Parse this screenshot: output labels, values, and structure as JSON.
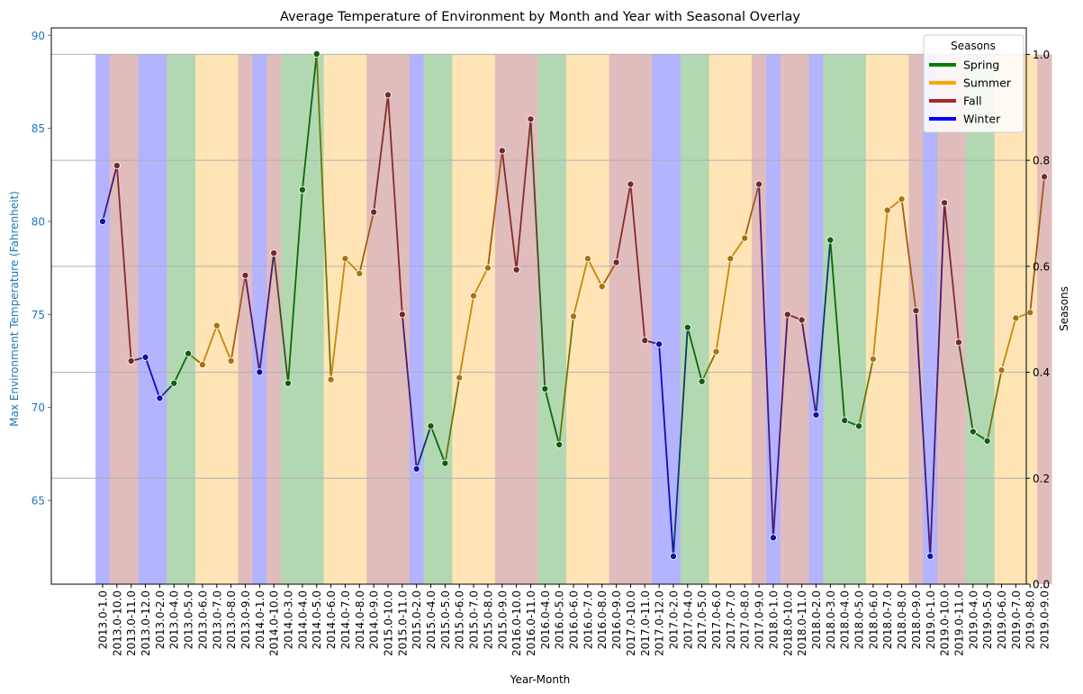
{
  "chart_data": {
    "type": "line",
    "title": "Average Temperature of Environment by Month and Year with Seasonal Overlay",
    "xlabel": "Year-Month",
    "ylabel": "Max Environment Temperature (Fahrenheit)",
    "y2label": "Seasons",
    "ylim": [
      60.5,
      90.4
    ],
    "y_ticks": [
      65,
      70,
      75,
      80,
      85,
      90
    ],
    "y2lim": [
      0.0,
      1.05
    ],
    "y2_ticks": [
      "0.0",
      "0.2",
      "0.4",
      "0.6",
      "0.8",
      "1.0"
    ],
    "grid": "horizontal grid on secondary axis",
    "legend": {
      "title": "Seasons",
      "placement": "top-right",
      "entries": [
        {
          "label": "Spring",
          "color": "#008000"
        },
        {
          "label": "Summer",
          "color": "#ffa500"
        },
        {
          "label": "Fall",
          "color": "#a52a2a"
        },
        {
          "label": "Winter",
          "color": "#0000ff"
        }
      ]
    },
    "season_band_colors": {
      "Spring": "#b2d8b2",
      "Summer": "#ffe4b5",
      "Fall": "#e0bcbc",
      "Winter": "#b3b3ff"
    },
    "line_colors": {
      "Spring": "#008000",
      "Summer": "#ffa500",
      "Fall": "#a52a2a",
      "Winter": "#0000ff"
    },
    "categories": [
      "2013.0-1.0",
      "2013.0-10.0",
      "2013.0-11.0",
      "2013.0-12.0",
      "2013.0-2.0",
      "2013.0-4.0",
      "2013.0-5.0",
      "2013.0-6.0",
      "2013.0-7.0",
      "2013.0-8.0",
      "2013.0-9.0",
      "2014.0-1.0",
      "2014.0-10.0",
      "2014.0-3.0",
      "2014.0-4.0",
      "2014.0-5.0",
      "2014.0-6.0",
      "2014.0-7.0",
      "2014.0-8.0",
      "2014.0-9.0",
      "2015.0-10.0",
      "2015.0-11.0",
      "2015.0-2.0",
      "2015.0-4.0",
      "2015.0-5.0",
      "2015.0-6.0",
      "2015.0-7.0",
      "2015.0-8.0",
      "2015.0-9.0",
      "2016.0-10.0",
      "2016.0-11.0",
      "2016.0-4.0",
      "2016.0-5.0",
      "2016.0-6.0",
      "2016.0-7.0",
      "2016.0-8.0",
      "2016.0-9.0",
      "2017.0-10.0",
      "2017.0-11.0",
      "2017.0-12.0",
      "2017.0-2.0",
      "2017.0-4.0",
      "2017.0-5.0",
      "2017.0-6.0",
      "2017.0-7.0",
      "2017.0-8.0",
      "2017.0-9.0",
      "2018.0-1.0",
      "2018.0-10.0",
      "2018.0-11.0",
      "2018.0-2.0",
      "2018.0-3.0",
      "2018.0-4.0",
      "2018.0-5.0",
      "2018.0-6.0",
      "2018.0-7.0",
      "2018.0-8.0",
      "2018.0-9.0",
      "2019.0-1.0",
      "2019.0-10.0",
      "2019.0-11.0",
      "2019.0-4.0",
      "2019.0-5.0",
      "2019.0-6.0",
      "2019.0-7.0",
      "2019.0-8.0",
      "2019.0-9.0"
    ],
    "seasons": [
      "Winter",
      "Fall",
      "Fall",
      "Winter",
      "Winter",
      "Spring",
      "Spring",
      "Summer",
      "Summer",
      "Summer",
      "Fall",
      "Winter",
      "Fall",
      "Spring",
      "Spring",
      "Spring",
      "Summer",
      "Summer",
      "Summer",
      "Fall",
      "Fall",
      "Fall",
      "Winter",
      "Spring",
      "Spring",
      "Summer",
      "Summer",
      "Summer",
      "Fall",
      "Fall",
      "Fall",
      "Spring",
      "Spring",
      "Summer",
      "Summer",
      "Summer",
      "Fall",
      "Fall",
      "Fall",
      "Winter",
      "Winter",
      "Spring",
      "Spring",
      "Summer",
      "Summer",
      "Summer",
      "Fall",
      "Winter",
      "Fall",
      "Fall",
      "Winter",
      "Spring",
      "Spring",
      "Spring",
      "Summer",
      "Summer",
      "Summer",
      "Fall",
      "Winter",
      "Fall",
      "Fall",
      "Spring",
      "Spring",
      "Summer",
      "Summer",
      "Summer",
      "Fall"
    ],
    "values": [
      80.0,
      83.0,
      72.5,
      72.7,
      70.5,
      71.3,
      72.9,
      72.3,
      74.4,
      72.5,
      77.1,
      71.9,
      78.3,
      71.3,
      81.7,
      89.0,
      71.5,
      78.0,
      77.2,
      80.5,
      86.8,
      75.0,
      66.7,
      69.0,
      67.0,
      71.6,
      76.0,
      77.5,
      83.8,
      77.4,
      85.5,
      71.0,
      68.0,
      74.9,
      78.0,
      76.5,
      77.8,
      82.0,
      73.6,
      73.4,
      62.0,
      74.3,
      71.4,
      73.0,
      78.0,
      79.1,
      82.0,
      63.0,
      75.0,
      74.7,
      69.6,
      79.0,
      69.3,
      69.0,
      72.6,
      80.6,
      81.2,
      75.2,
      62.0,
      81.0,
      73.5,
      68.7,
      68.2,
      72.0,
      74.8,
      75.1,
      82.4
    ]
  }
}
